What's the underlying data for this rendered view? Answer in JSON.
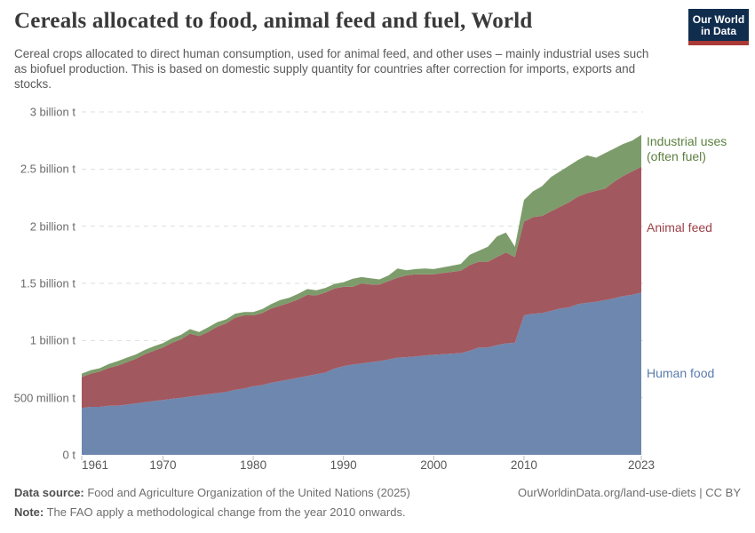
{
  "header": {
    "title": "Cereals allocated to food, animal feed and fuel, World",
    "subtitle": "Cereal crops allocated to direct human consumption, used for animal feed, and other uses – mainly industrial uses such as biofuel production. This is based on domestic supply quantity for countries after correction for imports, exports and stocks.",
    "logo": {
      "line1": "Our World",
      "line2": "in Data",
      "bg_color": "#102d4e",
      "accent_color": "#a93a35"
    }
  },
  "chart_data": {
    "type": "area",
    "stacked": true,
    "title": "Cereals allocated to food, animal feed and fuel, World",
    "unit": "tonnes",
    "xlim": [
      1961,
      2023
    ],
    "ylim": [
      0,
      3
    ],
    "grid": "horizontal dashed",
    "legend_position": "right",
    "grid_color": "#dddddd",
    "x": [
      1961,
      1962,
      1963,
      1964,
      1965,
      1966,
      1967,
      1968,
      1969,
      1970,
      1971,
      1972,
      1973,
      1974,
      1975,
      1976,
      1977,
      1978,
      1979,
      1980,
      1981,
      1982,
      1983,
      1984,
      1985,
      1986,
      1987,
      1988,
      1989,
      1990,
      1991,
      1992,
      1993,
      1994,
      1995,
      1996,
      1997,
      1998,
      1999,
      2000,
      2001,
      2002,
      2003,
      2004,
      2005,
      2006,
      2007,
      2008,
      2009,
      2010,
      2011,
      2012,
      2013,
      2014,
      2015,
      2016,
      2017,
      2018,
      2019,
      2020,
      2021,
      2022,
      2023
    ],
    "x_ticks": [
      1961,
      1970,
      1980,
      1990,
      2000,
      2010,
      2023
    ],
    "y_ticks": [
      {
        "value": 0,
        "label": "0 t"
      },
      {
        "value": 0.5,
        "label": "500 million t"
      },
      {
        "value": 1,
        "label": "1 billion t"
      },
      {
        "value": 1.5,
        "label": "1.5 billion t"
      },
      {
        "value": 2,
        "label": "2 billion t"
      },
      {
        "value": 2.5,
        "label": "2.5 billion t"
      },
      {
        "value": 3,
        "label": "3 billion t"
      }
    ],
    "values_unit_note": "values in billion tonnes",
    "series": [
      {
        "name": "Human food",
        "color": "#6e87ae",
        "label_color": "#5b7cad",
        "values": [
          0.41,
          0.42,
          0.42,
          0.43,
          0.43,
          0.44,
          0.45,
          0.46,
          0.47,
          0.48,
          0.49,
          0.5,
          0.51,
          0.52,
          0.53,
          0.54,
          0.55,
          0.57,
          0.58,
          0.6,
          0.61,
          0.63,
          0.645,
          0.66,
          0.675,
          0.69,
          0.705,
          0.72,
          0.755,
          0.775,
          0.79,
          0.8,
          0.81,
          0.82,
          0.835,
          0.85,
          0.855,
          0.86,
          0.87,
          0.875,
          0.88,
          0.885,
          0.89,
          0.91,
          0.94,
          0.94,
          0.96,
          0.975,
          0.98,
          1.22,
          1.235,
          1.24,
          1.26,
          1.28,
          1.29,
          1.32,
          1.33,
          1.34,
          1.355,
          1.37,
          1.39,
          1.4,
          1.42
        ]
      },
      {
        "name": "Animal feed",
        "color": "#a2585f",
        "label_color": "#9d4048",
        "values": [
          0.27,
          0.29,
          0.31,
          0.33,
          0.35,
          0.37,
          0.39,
          0.42,
          0.44,
          0.46,
          0.49,
          0.51,
          0.55,
          0.52,
          0.545,
          0.58,
          0.6,
          0.63,
          0.64,
          0.62,
          0.63,
          0.65,
          0.66,
          0.67,
          0.685,
          0.71,
          0.69,
          0.7,
          0.7,
          0.695,
          0.68,
          0.7,
          0.68,
          0.67,
          0.685,
          0.7,
          0.715,
          0.72,
          0.71,
          0.705,
          0.71,
          0.715,
          0.72,
          0.75,
          0.75,
          0.75,
          0.77,
          0.795,
          0.75,
          0.82,
          0.845,
          0.85,
          0.87,
          0.89,
          0.92,
          0.94,
          0.96,
          0.97,
          0.975,
          1.02,
          1.05,
          1.08,
          1.1
        ]
      },
      {
        "name": "Industrial uses (often fuel)",
        "color": "#7d9c6b",
        "label_color": "#5d8040",
        "values": [
          0.03,
          0.03,
          0.028,
          0.035,
          0.04,
          0.04,
          0.038,
          0.038,
          0.04,
          0.038,
          0.04,
          0.04,
          0.04,
          0.035,
          0.04,
          0.04,
          0.035,
          0.035,
          0.03,
          0.03,
          0.035,
          0.04,
          0.05,
          0.045,
          0.05,
          0.05,
          0.045,
          0.04,
          0.04,
          0.04,
          0.07,
          0.055,
          0.055,
          0.045,
          0.05,
          0.08,
          0.045,
          0.045,
          0.05,
          0.045,
          0.05,
          0.055,
          0.06,
          0.09,
          0.095,
          0.13,
          0.18,
          0.175,
          0.09,
          0.19,
          0.225,
          0.26,
          0.3,
          0.31,
          0.32,
          0.32,
          0.33,
          0.29,
          0.31,
          0.29,
          0.28,
          0.27,
          0.28
        ]
      }
    ]
  },
  "footer": {
    "source_label": "Data source:",
    "source_text": " Food and Agriculture Organization of the United Nations (2025)",
    "note_label": "Note:",
    "note_text": " The FAO apply a methodological change from the year 2010 onwards.",
    "credit": "OurWorldinData.org/land-use-diets | CC BY"
  }
}
